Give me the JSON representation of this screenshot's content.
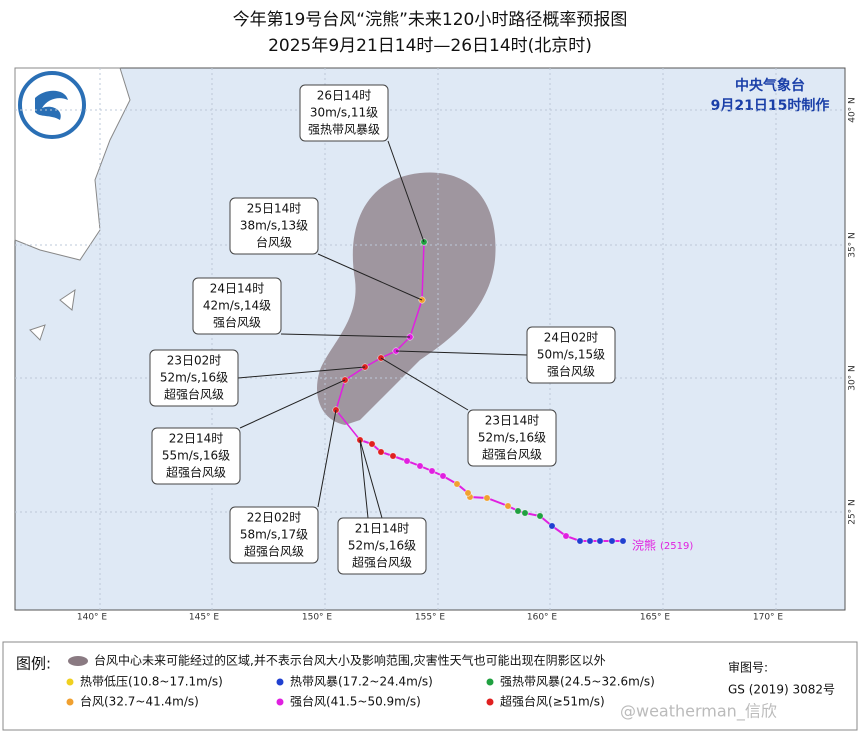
{
  "header": {
    "title": "今年第19号台风“浣熊”未来120小时路径概率预报图",
    "subtitle": "2025年9月21日14时—26日14时(北京时)"
  },
  "agency": {
    "name": "中央气象台",
    "issued": "9月21日15时制作"
  },
  "axes": {
    "longitudes": [
      "140° E",
      "145° E",
      "150° E",
      "155° E",
      "160° E",
      "165° E",
      "170° E"
    ],
    "latitudes": [
      "40° N",
      "35° N",
      "30° N",
      "25° N"
    ]
  },
  "typhoon": {
    "name": "浣熊",
    "code": "(2519)"
  },
  "forecasts": [
    {
      "time": "26日14时",
      "wind": "30m/s,11级",
      "grade": "强热带风暴级"
    },
    {
      "time": "25日14时",
      "wind": "38m/s,13级",
      "grade": "台风级"
    },
    {
      "time": "24日14时",
      "wind": "42m/s,14级",
      "grade": "强台风级"
    },
    {
      "time": "23日02时",
      "wind": "52m/s,16级",
      "grade": "超强台风级"
    },
    {
      "time": "22日14时",
      "wind": "55m/s,16级",
      "grade": "超强台风级"
    },
    {
      "time": "22日02时",
      "wind": "58m/s,17级",
      "grade": "超强台风级"
    },
    {
      "time": "21日14时",
      "wind": "52m/s,16级",
      "grade": "超强台风级"
    },
    {
      "time": "24日02时",
      "wind": "50m/s,15级",
      "grade": "强台风级"
    },
    {
      "time": "23日14时",
      "wind": "52m/s,16级",
      "grade": "超强台风级"
    }
  ],
  "legend": {
    "title": "图例:",
    "cone": "台风中心未来可能经过的区域,并不表示台风大小及影响范围,灾害性天气也可能出现在阴影区以外",
    "items": [
      "热带低压(10.8~17.1m/s)",
      "热带风暴(17.2~24.4m/s)",
      "强热带风暴(24.5~32.6m/s)",
      "台风(32.7~41.4m/s)",
      "强台风(41.5~50.9m/s)",
      "超强台风(≥51m/s)"
    ]
  },
  "approval": {
    "label": "审图号:",
    "number": "GS (2019) 3082号"
  },
  "watermark": "@weatherman_信欣"
}
